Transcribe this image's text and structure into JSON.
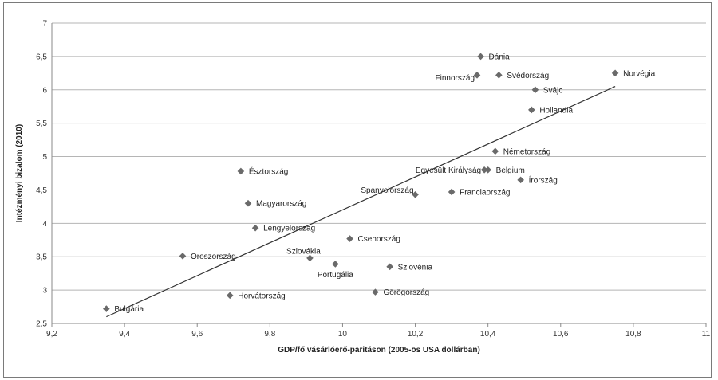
{
  "chart_data": {
    "type": "scatter",
    "title": "",
    "xlabel": "GDP/fő vásárlóerő-paritáson (2005-ös USA dollárban)",
    "ylabel": "Intézményi bizalom (2010)",
    "xlim": [
      9.2,
      11
    ],
    "ylim": [
      2.5,
      7
    ],
    "x_ticks": [
      "9,2",
      "9,4",
      "9,6",
      "9,8",
      "10",
      "10,2",
      "10,4",
      "10,6",
      "10,8",
      "11"
    ],
    "y_ticks": [
      "2,5",
      "3",
      "3,5",
      "4",
      "4,5",
      "5",
      "5,5",
      "6",
      "6,5",
      "7"
    ],
    "grid": "horizontal",
    "marker_color": "#6a6a6a",
    "trendline": {
      "x": [
        9.35,
        10.75
      ],
      "y": [
        2.6,
        6.05
      ]
    },
    "points": [
      {
        "label": "Dánia",
        "x": 10.38,
        "y": 6.5
      },
      {
        "label": "Finnország",
        "x": 10.37,
        "y": 6.22
      },
      {
        "label": "Svédország",
        "x": 10.43,
        "y": 6.22
      },
      {
        "label": "Norvégia",
        "x": 10.75,
        "y": 6.25
      },
      {
        "label": "Svájc",
        "x": 10.53,
        "y": 6.0
      },
      {
        "label": "Hollandia",
        "x": 10.52,
        "y": 5.7
      },
      {
        "label": "Németország",
        "x": 10.42,
        "y": 5.08
      },
      {
        "label": "Egyesült Királyság",
        "x": 10.39,
        "y": 4.8
      },
      {
        "label": "Belgium",
        "x": 10.4,
        "y": 4.8
      },
      {
        "label": "Írország",
        "x": 10.49,
        "y": 4.65
      },
      {
        "label": "Spanyolország",
        "x": 10.2,
        "y": 4.43
      },
      {
        "label": "Franciaország",
        "x": 10.3,
        "y": 4.47
      },
      {
        "label": "Észtország",
        "x": 9.72,
        "y": 4.78
      },
      {
        "label": "Magyarország",
        "x": 9.74,
        "y": 4.3
      },
      {
        "label": "Lengyelország",
        "x": 9.76,
        "y": 3.93
      },
      {
        "label": "Csehország",
        "x": 10.02,
        "y": 3.77
      },
      {
        "label": "Oroszország",
        "x": 9.56,
        "y": 3.51
      },
      {
        "label": "Szlovákia",
        "x": 9.91,
        "y": 3.48
      },
      {
        "label": "Portugália",
        "x": 9.98,
        "y": 3.39
      },
      {
        "label": "Szlovénia",
        "x": 10.13,
        "y": 3.35
      },
      {
        "label": "Horvátország",
        "x": 9.69,
        "y": 2.92
      },
      {
        "label": "Görögország",
        "x": 10.09,
        "y": 2.97
      },
      {
        "label": "Bulgária",
        "x": 9.35,
        "y": 2.72
      }
    ]
  }
}
